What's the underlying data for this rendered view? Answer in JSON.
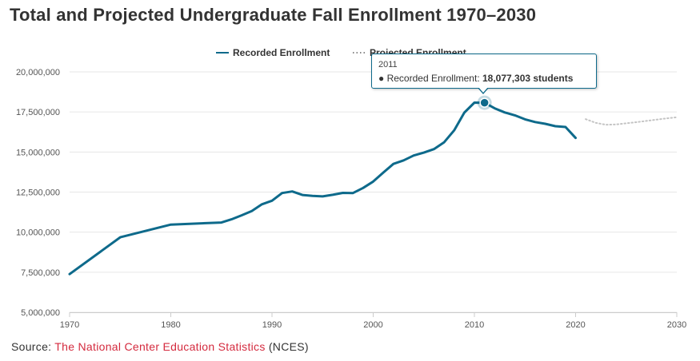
{
  "title": "Total and Projected Undergraduate Fall Enrollment 1970–2030",
  "source": {
    "prefix": "Source: ",
    "link_text": "The National Center Education Statistics",
    "suffix": " (NCES)"
  },
  "tooltip": {
    "year": "2011",
    "series_label": "Recorded Enrollment: ",
    "value_text": "18,077,303 students"
  },
  "colors": {
    "recorded": "#0e6a8b",
    "projected": "#c4c4c4",
    "grid": "#e6e6e6",
    "source_link": "#d42a3e"
  },
  "chart_data": {
    "type": "line",
    "title": "Total and Projected Undergraduate Fall Enrollment 1970–2030",
    "xlabel": "",
    "ylabel": "",
    "xlim": [
      1970,
      2030
    ],
    "ylim": [
      5000000,
      20000000
    ],
    "x_ticks": [
      1970,
      1980,
      1990,
      2000,
      2010,
      2020,
      2030
    ],
    "y_ticks": [
      5000000,
      7500000,
      10000000,
      12500000,
      15000000,
      17500000,
      20000000
    ],
    "y_tick_labels": [
      "5,000,000",
      "7,500,000",
      "10,000,000",
      "12,500,000",
      "15,000,000",
      "17,500,000",
      "20,000,000"
    ],
    "grid": true,
    "legend_position": "top",
    "series": [
      {
        "name": "Recorded Enrollment",
        "style": "solid",
        "points": [
          [
            1970,
            7380000
          ],
          [
            1975,
            9680000
          ],
          [
            1980,
            10470000
          ],
          [
            1985,
            10600000
          ],
          [
            1986,
            10800000
          ],
          [
            1987,
            11050000
          ],
          [
            1988,
            11320000
          ],
          [
            1989,
            11740000
          ],
          [
            1990,
            11960000
          ],
          [
            1991,
            12440000
          ],
          [
            1992,
            12540000
          ],
          [
            1993,
            12320000
          ],
          [
            1994,
            12260000
          ],
          [
            1995,
            12230000
          ],
          [
            1996,
            12330000
          ],
          [
            1997,
            12450000
          ],
          [
            1998,
            12440000
          ],
          [
            1999,
            12760000
          ],
          [
            2000,
            13160000
          ],
          [
            2001,
            13720000
          ],
          [
            2002,
            14260000
          ],
          [
            2003,
            14480000
          ],
          [
            2004,
            14780000
          ],
          [
            2005,
            14960000
          ],
          [
            2006,
            15180000
          ],
          [
            2007,
            15600000
          ],
          [
            2008,
            16350000
          ],
          [
            2009,
            17460000
          ],
          [
            2010,
            18080000
          ],
          [
            2011,
            18077303
          ],
          [
            2012,
            17730000
          ],
          [
            2013,
            17470000
          ],
          [
            2014,
            17290000
          ],
          [
            2015,
            17040000
          ],
          [
            2016,
            16870000
          ],
          [
            2017,
            16760000
          ],
          [
            2018,
            16610000
          ],
          [
            2019,
            16560000
          ],
          [
            2020,
            15880000
          ]
        ]
      },
      {
        "name": "Projected Enrollment",
        "style": "dotted",
        "points": [
          [
            2021,
            17050000
          ],
          [
            2022,
            16820000
          ],
          [
            2023,
            16700000
          ],
          [
            2024,
            16720000
          ],
          [
            2025,
            16790000
          ],
          [
            2026,
            16860000
          ],
          [
            2027,
            16940000
          ],
          [
            2028,
            17020000
          ],
          [
            2029,
            17100000
          ],
          [
            2030,
            17170000
          ]
        ]
      }
    ],
    "highlight": {
      "x": 2011,
      "y": 18077303
    }
  }
}
